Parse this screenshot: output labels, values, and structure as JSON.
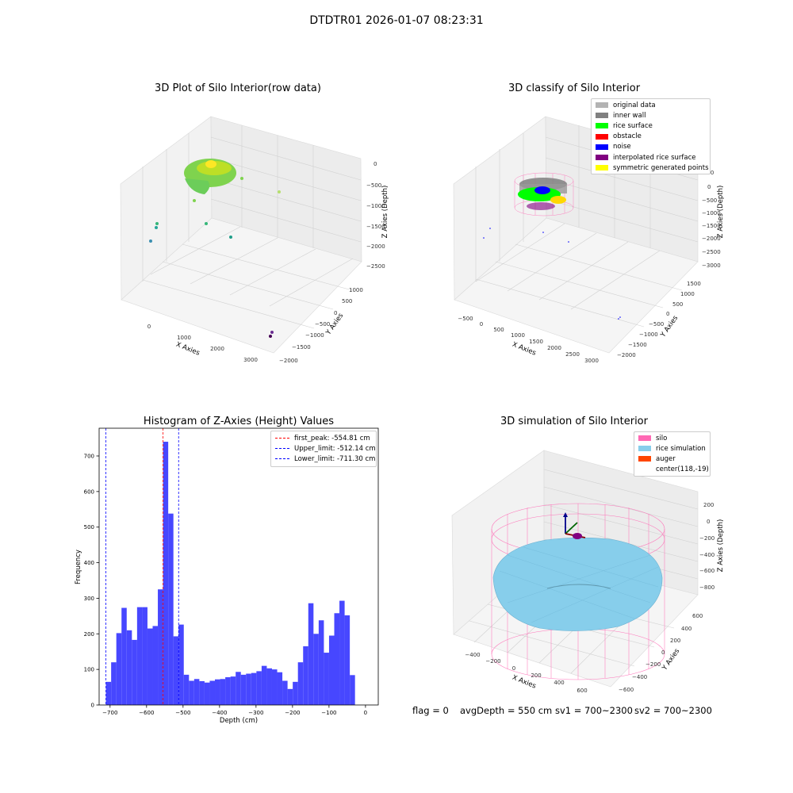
{
  "suptitle": "DTDTR01 2026-01-07 08:23:31",
  "panels": {
    "raw": {
      "title": "3D Plot of Silo Interior(row data)",
      "xlabel": "X Axies",
      "ylabel": "Y Axies",
      "zlabel": "Z Axies (Depth)",
      "xticks": [
        "0",
        "1000",
        "2000",
        "3000"
      ],
      "yticks": [
        "1000",
        "500",
        "0",
        "−500",
        "−1000",
        "−1500",
        "−2000"
      ],
      "zticks": [
        "0",
        "−500",
        "−1000",
        "−1500",
        "−2000",
        "−2500"
      ]
    },
    "classify": {
      "title": "3D classify of Silo Interior",
      "xlabel": "X Axies",
      "ylabel": "Y Axies",
      "zlabel": "Z Axies (Depth)",
      "xticks": [
        "−500",
        "0",
        "500",
        "1000",
        "1500",
        "2000",
        "2500",
        "3000"
      ],
      "yticks": [
        "1500",
        "1000",
        "500",
        "0",
        "−500",
        "−1000",
        "−1500",
        "−2000"
      ],
      "zticks": [
        "500",
        "0",
        "−500",
        "−1000",
        "−1500",
        "−2000",
        "−2500",
        "−3000"
      ],
      "legend": [
        {
          "label": "original data",
          "color": "#b3b3b3"
        },
        {
          "label": "inner wall",
          "color": "#808080"
        },
        {
          "label": "rice surface",
          "color": "#00ff00"
        },
        {
          "label": "obstacle",
          "color": "#ff0000"
        },
        {
          "label": "noise",
          "color": "#0000ff"
        },
        {
          "label": "interpolated rice surface",
          "color": "#800080"
        },
        {
          "label": "symmetric generated points",
          "color": "#ffff00"
        }
      ]
    },
    "simulation": {
      "title": "3D simulation of Silo Interior",
      "xlabel": "X Axies",
      "ylabel": "Y Axies",
      "zlabel": "Z Axies (Depth)",
      "xticks": [
        "−400",
        "−200",
        "0",
        "200",
        "400",
        "600"
      ],
      "yticks": [
        "600",
        "400",
        "200",
        "0",
        "−200",
        "−400",
        "−600"
      ],
      "zticks": [
        "200",
        "0",
        "−200",
        "−400",
        "−600",
        "−800"
      ],
      "legend": [
        {
          "label": "silo",
          "color": "#ff69b4"
        },
        {
          "label": "rice simulation",
          "color": "#87ceeb"
        },
        {
          "label": "auger",
          "color": "#ff4500"
        },
        {
          "label": "center(118,-19)",
          "color": ""
        }
      ]
    }
  },
  "status_line": {
    "flag": "flag = 0",
    "avg_depth": "avgDepth = 550 cm",
    "sv1": "sv1 = 700~2300",
    "sv2": "sv2 = 700~2300"
  },
  "chart_data": {
    "type": "bar",
    "title": "Histogram of Z-Axies (Height) Values",
    "xlabel": "Depth (cm)",
    "ylabel": "Frequency",
    "xlim": [
      -730,
      35
    ],
    "ylim": [
      0,
      778
    ],
    "xticks": [
      -700,
      -600,
      -500,
      -400,
      -300,
      -200,
      -100,
      0
    ],
    "xtick_labels": [
      "−700",
      "−600",
      "−500",
      "−400",
      "−300",
      "−200",
      "−100",
      "0"
    ],
    "yticks": [
      0,
      100,
      200,
      300,
      400,
      500,
      600,
      700
    ],
    "bar_color": "#4747ff",
    "bin_edges_start": -711.3,
    "bin_width": 14.22,
    "values": [
      65,
      120,
      202,
      273,
      210,
      183,
      275,
      275,
      215,
      222,
      325,
      740,
      538,
      193,
      226,
      85,
      68,
      73,
      67,
      63,
      68,
      72,
      73,
      78,
      80,
      93,
      85,
      88,
      90,
      95,
      110,
      103,
      100,
      92,
      68,
      45,
      65,
      120,
      165,
      286,
      200,
      238,
      147,
      195,
      258,
      293,
      252,
      84
    ],
    "vlines": [
      {
        "x": -554.81,
        "color": "#ff0000",
        "label": "first_peak: -554.81 cm"
      },
      {
        "x": -512.14,
        "color": "#0000ff",
        "label": "Upper_limit: -512.14 cm"
      },
      {
        "x": -711.3,
        "color": "#0000ff",
        "label": "Lower_limit: -711.30 cm"
      }
    ],
    "legend_position": "upper right"
  }
}
